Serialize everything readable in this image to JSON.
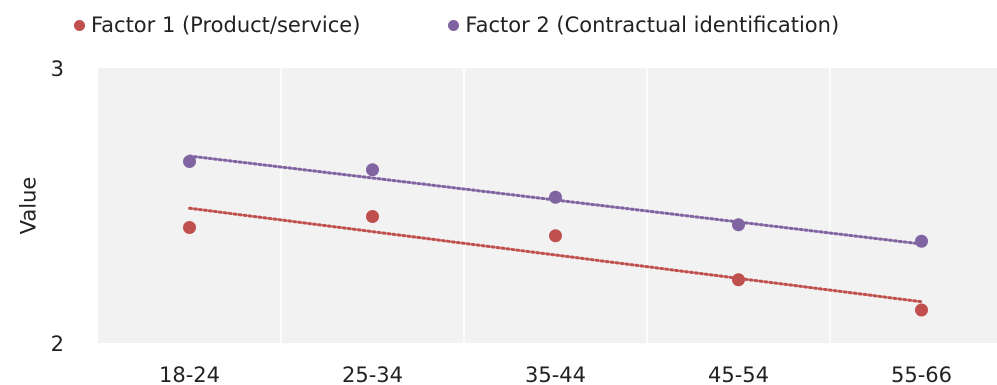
{
  "chart_data": {
    "type": "scatter",
    "categories": [
      "18-24",
      "25-34",
      "35-44",
      "45-54",
      "55-66"
    ],
    "series": [
      {
        "name": "Factor 1 (Product/service)",
        "values": [
          2.42,
          2.46,
          2.39,
          2.23,
          2.12
        ],
        "trendline": {
          "start": 2.49,
          "end": 2.15
        },
        "color": "#c0504d"
      },
      {
        "name": "Factor 2 (Contractual identification)",
        "values": [
          2.66,
          2.63,
          2.53,
          2.43,
          2.37
        ],
        "trendline": {
          "start": 2.68,
          "end": 2.36
        },
        "color": "#8064a2"
      }
    ],
    "title": "",
    "xlabel": "",
    "ylabel": "Value",
    "ylim": [
      2,
      3
    ],
    "yticks": [
      "2",
      "3"
    ],
    "grid": "vertical",
    "legend_position": "top",
    "plot_background": "#f2f2f2"
  }
}
